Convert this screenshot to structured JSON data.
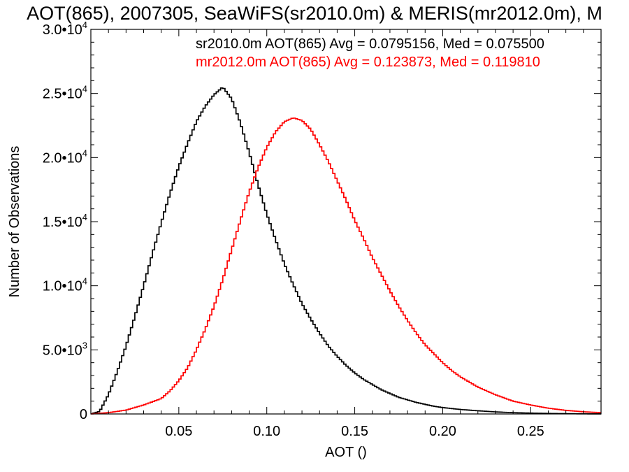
{
  "chart_data": {
    "type": "line",
    "title": "AOT(865), 2007305, SeaWiFS(sr2010.0m) & MERIS(mr2012.0m), M",
    "xlabel": "AOT ()",
    "ylabel": "Number of Observations",
    "xlim": [
      0.0,
      0.29
    ],
    "ylim": [
      0,
      30000
    ],
    "x_ticks": [
      0.05,
      0.1,
      0.15,
      0.2,
      0.25
    ],
    "x_tick_labels": [
      "0.05",
      "0.10",
      "0.15",
      "0.20",
      "0.25"
    ],
    "y_ticks": [
      0,
      5000,
      10000,
      15000,
      20000,
      25000,
      30000
    ],
    "y_tick_labels": [
      {
        "mant": "0",
        "exp": ""
      },
      {
        "mant": "5.0•10",
        "exp": "3"
      },
      {
        "mant": "1.0•10",
        "exp": "4"
      },
      {
        "mant": "1.5•10",
        "exp": "4"
      },
      {
        "mant": "2.0•10",
        "exp": "4"
      },
      {
        "mant": "2.5•10",
        "exp": "4"
      },
      {
        "mant": "3.0•10",
        "exp": "4"
      }
    ],
    "grid": false,
    "legend_position": "top-right",
    "histogram_step": true,
    "series": [
      {
        "legend_text": "sr2010.0m AOT(865) Avg = 0.0795156, Med = 0.075500",
        "color": "#000000",
        "points": [
          [
            0.0,
            0
          ],
          [
            0.005,
            200
          ],
          [
            0.01,
            1500
          ],
          [
            0.015,
            3300
          ],
          [
            0.02,
            5300
          ],
          [
            0.025,
            7600
          ],
          [
            0.03,
            10000
          ],
          [
            0.035,
            12500
          ],
          [
            0.04,
            14900
          ],
          [
            0.045,
            17200
          ],
          [
            0.05,
            19300
          ],
          [
            0.055,
            21100
          ],
          [
            0.06,
            22800
          ],
          [
            0.065,
            24000
          ],
          [
            0.07,
            24900
          ],
          [
            0.075,
            25500
          ],
          [
            0.08,
            24600
          ],
          [
            0.085,
            22700
          ],
          [
            0.09,
            20400
          ],
          [
            0.095,
            17900
          ],
          [
            0.1,
            15600
          ],
          [
            0.105,
            13600
          ],
          [
            0.11,
            11700
          ],
          [
            0.115,
            10100
          ],
          [
            0.12,
            8600
          ],
          [
            0.125,
            7400
          ],
          [
            0.13,
            6300
          ],
          [
            0.135,
            5300
          ],
          [
            0.14,
            4500
          ],
          [
            0.145,
            3800
          ],
          [
            0.15,
            3200
          ],
          [
            0.155,
            2700
          ],
          [
            0.16,
            2300
          ],
          [
            0.165,
            1900
          ],
          [
            0.17,
            1600
          ],
          [
            0.175,
            1300
          ],
          [
            0.18,
            1100
          ],
          [
            0.185,
            900
          ],
          [
            0.19,
            750
          ],
          [
            0.195,
            600
          ],
          [
            0.2,
            500
          ],
          [
            0.21,
            350
          ],
          [
            0.22,
            250
          ],
          [
            0.23,
            160
          ],
          [
            0.24,
            100
          ],
          [
            0.25,
            70
          ],
          [
            0.26,
            40
          ],
          [
            0.27,
            25
          ],
          [
            0.28,
            10
          ],
          [
            0.29,
            5
          ]
        ]
      },
      {
        "legend_text": "mr2012.0m AOT(865) Avg = 0.123873, Med = 0.119810",
        "color": "#ff0000",
        "points": [
          [
            0.0,
            0
          ],
          [
            0.01,
            100
          ],
          [
            0.02,
            300
          ],
          [
            0.03,
            700
          ],
          [
            0.04,
            1200
          ],
          [
            0.045,
            1800
          ],
          [
            0.05,
            2600
          ],
          [
            0.055,
            3600
          ],
          [
            0.06,
            5000
          ],
          [
            0.065,
            6600
          ],
          [
            0.07,
            8400
          ],
          [
            0.075,
            10500
          ],
          [
            0.08,
            12800
          ],
          [
            0.085,
            15100
          ],
          [
            0.09,
            17300
          ],
          [
            0.095,
            19200
          ],
          [
            0.1,
            20800
          ],
          [
            0.105,
            22000
          ],
          [
            0.11,
            22800
          ],
          [
            0.115,
            23100
          ],
          [
            0.12,
            22900
          ],
          [
            0.125,
            22200
          ],
          [
            0.13,
            21000
          ],
          [
            0.135,
            19700
          ],
          [
            0.14,
            18200
          ],
          [
            0.145,
            16700
          ],
          [
            0.15,
            15100
          ],
          [
            0.155,
            13700
          ],
          [
            0.16,
            12200
          ],
          [
            0.165,
            10900
          ],
          [
            0.17,
            9600
          ],
          [
            0.175,
            8400
          ],
          [
            0.18,
            7300
          ],
          [
            0.185,
            6300
          ],
          [
            0.19,
            5400
          ],
          [
            0.195,
            4700
          ],
          [
            0.2,
            4000
          ],
          [
            0.205,
            3400
          ],
          [
            0.21,
            2900
          ],
          [
            0.215,
            2500
          ],
          [
            0.22,
            2100
          ],
          [
            0.225,
            1800
          ],
          [
            0.23,
            1500
          ],
          [
            0.24,
            1000
          ],
          [
            0.25,
            700
          ],
          [
            0.26,
            450
          ],
          [
            0.27,
            280
          ],
          [
            0.28,
            170
          ],
          [
            0.29,
            100
          ]
        ]
      }
    ]
  }
}
